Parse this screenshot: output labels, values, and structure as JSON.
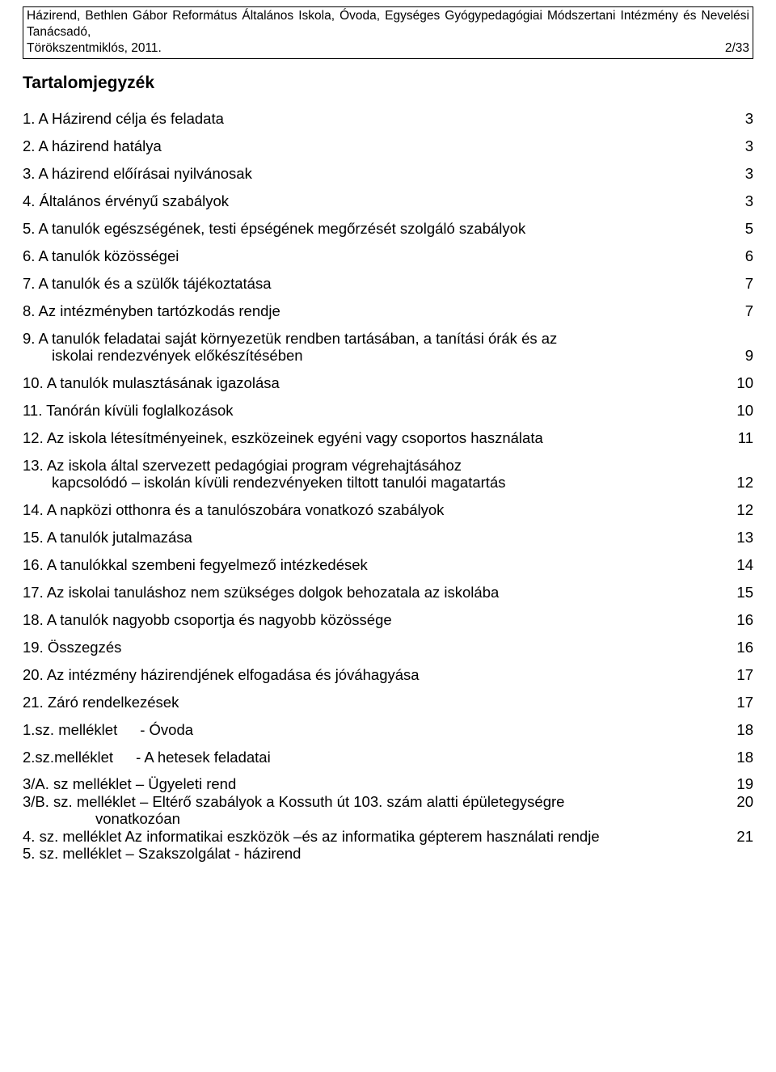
{
  "header": {
    "line1": "Házirend, Bethlen Gábor Református Általános Iskola, Óvoda, Egységes Gyógypedagógiai Módszertani Intézmény és Nevelési Tanácsadó,",
    "line2_left": "Törökszentmiklós, 2011.",
    "line2_right": "2/33"
  },
  "title": "Tartalomjegyzék",
  "toc": [
    {
      "text": "1. A Házirend célja és feladata",
      "page": "3"
    },
    {
      "text": "2. A házirend hatálya",
      "page": "3"
    },
    {
      "text": "3. A házirend előírásai nyilvánosak",
      "page": "3"
    },
    {
      "text": "4. Általános érvényű szabályok",
      "page": "3"
    },
    {
      "text": "5. A tanulók egészségének, testi épségének megőrzését szolgáló szabályok",
      "page": "5"
    },
    {
      "text": "6. A tanulók közösségei",
      "page": "6"
    },
    {
      "text": "7. A tanulók és a szülők tájékoztatása",
      "page": "7"
    },
    {
      "text": "8. Az intézményben tartózkodás rendje",
      "page": "7"
    },
    {
      "text": "9. A tanulók feladatai saját környezetük rendben tartásában, a tanítási órák és az",
      "cont": "iskolai rendezvények előkészítésében",
      "page": "9"
    },
    {
      "text": "10. A tanulók mulasztásának igazolása",
      "page": "10"
    },
    {
      "text": "11. Tanórán kívüli foglalkozások",
      "page": "10"
    },
    {
      "text": "12. Az iskola létesítményeinek, eszközeinek egyéni vagy csoportos használata",
      "page": "11"
    },
    {
      "text": "13. Az iskola által szervezett pedagógiai program végrehajtásához",
      "cont": "kapcsolódó – iskolán kívüli rendezvényeken tiltott tanulói magatartás",
      "page": "12"
    },
    {
      "text": "14. A napközi otthonra és a tanulószobára vonatkozó szabályok",
      "page": "12"
    },
    {
      "text": "15. A tanulók jutalmazása",
      "page": "13"
    },
    {
      "text": "16. A tanulókkal szembeni fegyelmező intézkedések",
      "page": "14"
    },
    {
      "text": "17. Az iskolai tanuláshoz nem szükséges dolgok behozatala az iskolába",
      "page": "15"
    },
    {
      "text": "18. A tanulók nagyobb csoportja és nagyobb közössége",
      "page": "16"
    },
    {
      "text": "19. Összegzés",
      "page": "16"
    },
    {
      "text": "20. Az intézmény házirendjének elfogadása és jóváhagyása",
      "page": "17"
    },
    {
      "text": "21. Záró rendelkezések",
      "page": "17"
    },
    {
      "text_parts": [
        "1.sz. melléklet",
        "- Óvoda"
      ],
      "page": "18"
    },
    {
      "text_parts": [
        "2.sz.melléklet",
        "- A hetesek feladatai"
      ],
      "page": "18"
    },
    {
      "text": "3/A. sz melléklet – Ügyeleti rend",
      "page": "19",
      "tight": true
    },
    {
      "text": "3/B. sz. melléklet – Eltérő szabályok a Kossuth út 103. szám alatti épületegységre",
      "cont2": "vonatkozóan",
      "page": "20",
      "tight": true
    },
    {
      "text": "4. sz. melléklet Az informatikai eszközök –és az informatika gépterem használati rendje",
      "page": "21",
      "tight": true
    },
    {
      "text": "5. sz. melléklet – Szakszolgálat - házirend",
      "page": "",
      "tight": true,
      "nopage": true
    }
  ]
}
